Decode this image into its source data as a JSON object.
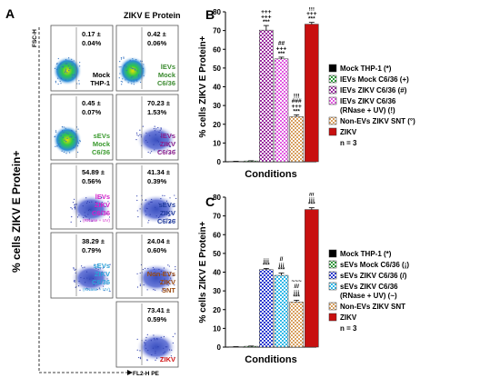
{
  "panel_a": {
    "label": "A",
    "column_header": "ZIKV E Protein",
    "y_axis_label": "% cells ZIKV E Protein+",
    "fsc_label": "FSC-H",
    "fl2_label": "FL2-H PE",
    "plots": [
      {
        "value": "0.17 ±",
        "sd": "0.04%",
        "name": [
          "Mock",
          "THP-1"
        ],
        "color": "#000000"
      },
      {
        "value": "0.42 ±",
        "sd": "0.06%",
        "name": [
          "lEVs",
          "Mock",
          "C6/36"
        ],
        "color": "#3a8a2e"
      },
      {
        "value": "0.45 ±",
        "sd": "0.07%",
        "name": [
          "sEVs",
          "Mock",
          "C6/36"
        ],
        "color": "#3a9a2e"
      },
      {
        "value": "70.23 ±",
        "sd": "1.53%",
        "name": [
          "lEVs",
          "ZIKV",
          "C6/36"
        ],
        "color": "#8b1f8b"
      },
      {
        "value": "54.89 ±",
        "sd": "0.56%",
        "name": [
          "lEVs",
          "ZIKV",
          "C6/36"
        ],
        "note": "(RNase + UV)",
        "color": "#d21fc8"
      },
      {
        "value": "41.34 ±",
        "sd": "0.39%",
        "name": [
          "sEVs",
          "ZIKV",
          "C6/36"
        ],
        "color": "#1f3a9a"
      },
      {
        "value": "38.29 ±",
        "sd": "0.79%",
        "name": [
          "sEVs",
          "ZIKV",
          "C6/36"
        ],
        "note": "(RNase + UV)",
        "color": "#2aa0d8"
      },
      {
        "value": "24.04 ±",
        "sd": "0.60%",
        "name": [
          "Non-EVs",
          "ZIKV",
          "SNT"
        ],
        "color": "#9a4a10"
      },
      {
        "value": "73.41 ±",
        "sd": "0.59%",
        "name": [
          "ZIKV"
        ],
        "color": "#d01010"
      }
    ]
  },
  "chart_data": [
    {
      "panel": "B",
      "type": "bar",
      "xlabel": "Conditions",
      "ylabel": "% cells ZIKV E Protein+",
      "ylim": [
        0,
        80
      ],
      "yticks": [
        0,
        10,
        20,
        30,
        40,
        50,
        60,
        70,
        80
      ],
      "legend_position": "right",
      "n_label": "n = 3",
      "bars": [
        {
          "name": "Mock THP-1 (*)",
          "value": 0.17,
          "error": 0.04,
          "color": "#000000",
          "pattern": "solid",
          "marks": []
        },
        {
          "name": "lEVs Mock C6/36 (+)",
          "value": 0.42,
          "error": 0.06,
          "color": "#2e9a3a",
          "pattern": "check",
          "marks": []
        },
        {
          "name": "lEVs ZIKV C6/36 (#)",
          "value": 70.23,
          "error": 1.53,
          "color": "#9a2ea0",
          "pattern": "check",
          "marks": [
            "+++",
            "+++",
            "***"
          ]
        },
        {
          "name": "lEVs ZIKV C6/36 (RNase + UV) (!)",
          "value": 54.89,
          "error": 0.56,
          "color": "#e05ae0",
          "pattern": "check",
          "marks": [
            "##",
            "+++",
            "***"
          ]
        },
        {
          "name": "Non-EVs ZIKV SNT (°)",
          "value": 24.04,
          "error": 0.6,
          "color": "#d8a060",
          "pattern": "check",
          "marks": [
            "!!!",
            "###",
            "+++",
            "***"
          ]
        },
        {
          "name": "ZIKV",
          "value": 73.41,
          "error": 0.59,
          "color": "#c81010",
          "pattern": "solid",
          "marks": [
            "°°°",
            "!!!",
            "+++",
            "***"
          ]
        }
      ]
    },
    {
      "panel": "C",
      "type": "bar",
      "xlabel": "Conditions",
      "ylabel": "% cells ZIKV E Protein+",
      "ylim": [
        0,
        80
      ],
      "yticks": [
        0,
        10,
        20,
        30,
        40,
        50,
        60,
        70,
        80
      ],
      "legend_position": "right",
      "n_label": "n = 3",
      "bars": [
        {
          "name": "Mock THP-1 (*)",
          "value": 0.17,
          "error": 0.04,
          "color": "#000000",
          "pattern": "solid",
          "marks": []
        },
        {
          "name": "sEVs Mock C6/36 (¡)",
          "value": 0.45,
          "error": 0.07,
          "color": "#2e9a3a",
          "pattern": "check",
          "marks": []
        },
        {
          "name": "sEVs ZIKV C6/36 (/)",
          "value": 41.34,
          "error": 0.39,
          "color": "#2a3ad0",
          "pattern": "check",
          "marks": [
            "¡¡¡",
            "***"
          ]
        },
        {
          "name": "sEVs ZIKV C6/36 (RNase + UV) (~)",
          "value": 38.29,
          "error": 0.79,
          "color": "#30b8e8",
          "pattern": "check",
          "marks": [
            "//",
            "¡¡¡",
            "***"
          ]
        },
        {
          "name": "Non-EVs ZIKV SNT",
          "value": 24.04,
          "error": 0.6,
          "color": "#d8a060",
          "pattern": "check",
          "marks": [
            "~~~",
            "///",
            "¡¡¡",
            "***"
          ]
        },
        {
          "name": "ZIKV",
          "value": 73.41,
          "error": 0.59,
          "color": "#c81010",
          "pattern": "solid",
          "marks": [
            "~~~",
            "///",
            "¡¡¡",
            "***"
          ]
        }
      ]
    }
  ]
}
